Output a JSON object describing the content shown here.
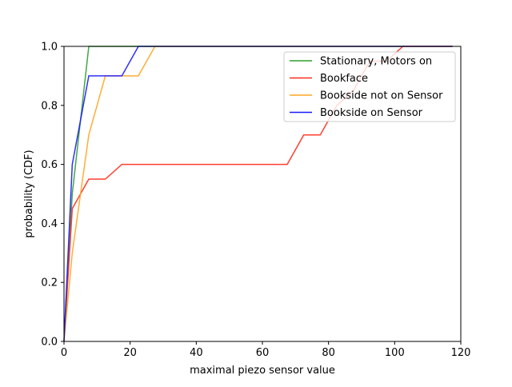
{
  "chart_data": {
    "type": "line",
    "title": "",
    "xlabel": "maximal piezo sensor value",
    "ylabel": "probability (CDF)",
    "xlim": [
      0,
      120
    ],
    "ylim": [
      0,
      1.0
    ],
    "xticks": [
      0,
      20,
      40,
      60,
      80,
      100,
      120
    ],
    "yticks": [
      0.0,
      0.2,
      0.4,
      0.6,
      0.8,
      1.0
    ],
    "xtick_labels": [
      "0",
      "20",
      "40",
      "60",
      "80",
      "100",
      "120"
    ],
    "ytick_labels": [
      "0.0",
      "0.2",
      "0.4",
      "0.6",
      "0.8",
      "1.0"
    ],
    "grid": false,
    "legend_position": "top-right",
    "series": [
      {
        "name": "Stationary, Motors on",
        "color": "#2ca02c",
        "x": [
          0,
          2.5,
          7.5,
          117.5
        ],
        "y": [
          0,
          0.5,
          1.0,
          1.0
        ]
      },
      {
        "name": "Bookface",
        "color": "#ff2a1a",
        "x": [
          0,
          2.5,
          7.5,
          12.5,
          17.5,
          22.5,
          27.5,
          32.5,
          37.5,
          42.5,
          47.5,
          52.5,
          57.5,
          62.5,
          67.5,
          72.5,
          77.5,
          82.5,
          87.5,
          92.5,
          97.5,
          102.5,
          107.5,
          112.5,
          117.5
        ],
        "y": [
          0,
          0.45,
          0.55,
          0.55,
          0.6,
          0.6,
          0.6,
          0.6,
          0.6,
          0.6,
          0.6,
          0.6,
          0.6,
          0.6,
          0.6,
          0.7,
          0.7,
          0.8,
          0.85,
          0.95,
          0.95,
          1.0,
          1.0,
          1.0,
          1.0
        ]
      },
      {
        "name": "Bookside not on Sensor",
        "color": "#ffa520",
        "x": [
          0,
          2.5,
          7.5,
          12.5,
          17.5,
          22.5,
          27.5,
          117.5
        ],
        "y": [
          0,
          0.3,
          0.7,
          0.9,
          0.9,
          0.9,
          1.0,
          1.0
        ]
      },
      {
        "name": "Bookside on Sensor",
        "color": "#1a1aff",
        "x": [
          0,
          2.5,
          7.5,
          12.5,
          17.5,
          22.5,
          27.5,
          117.5
        ],
        "y": [
          0,
          0.6,
          0.9,
          0.9,
          0.9,
          1.0,
          1.0,
          1.0
        ]
      }
    ]
  }
}
